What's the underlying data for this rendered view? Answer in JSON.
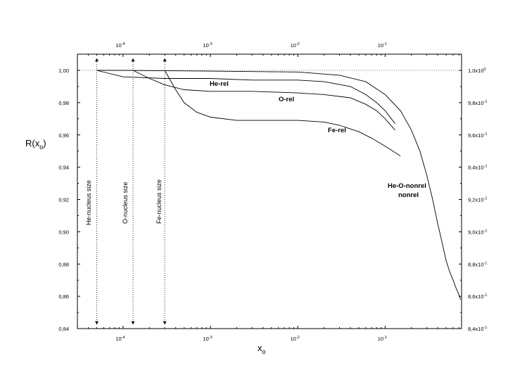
{
  "chart_data": {
    "type": "line",
    "ylabel": "R(x",
    "ylabel_sub": "o",
    "ylabel_close": ")",
    "xlabel": "x",
    "xlabel_sub": "o",
    "x_scale": "log",
    "xlim": [
      3e-05,
      0.75
    ],
    "ylim": [
      0.84,
      1.005
    ],
    "y_ticks": [
      0.84,
      0.86,
      0.88,
      0.9,
      0.92,
      0.94,
      0.96,
      0.98,
      1.0
    ],
    "y_tick_labels": [
      "0,84",
      "0,86",
      "0,88",
      "0,90",
      "0,92",
      "0,94",
      "0,96",
      "0,98",
      "1,00"
    ],
    "y_right_tick_labels": [
      {
        "base": "8,4x10",
        "exp": "-1"
      },
      {
        "base": "8,6x10",
        "exp": "-1"
      },
      {
        "base": "8,8x10",
        "exp": "-1"
      },
      {
        "base": "9,0x10",
        "exp": "-1"
      },
      {
        "base": "9,2x10",
        "exp": "-1"
      },
      {
        "base": "9,4x10",
        "exp": "-1"
      },
      {
        "base": "9,6x10",
        "exp": "-1"
      },
      {
        "base": "9,8x10",
        "exp": "-1"
      },
      {
        "base": "1,0x10",
        "exp": "0"
      }
    ],
    "x_ticks": [
      0.0001,
      0.001,
      0.01,
      0.1
    ],
    "x_tick_labels": [
      {
        "base": "10",
        "exp": "-4"
      },
      {
        "base": "10",
        "exp": "-3"
      },
      {
        "base": "10",
        "exp": "-2"
      },
      {
        "base": "10",
        "exp": "-1"
      }
    ],
    "reference_line_y": 1.0,
    "series": [
      {
        "name": "He-O-nonrel\nnonrel",
        "x": [
          5e-05,
          0.0001,
          0.001,
          0.01,
          0.03,
          0.06,
          0.1,
          0.15,
          0.2,
          0.25,
          0.3,
          0.35,
          0.4,
          0.45,
          0.5,
          0.55,
          0.6,
          0.65,
          0.7,
          0.73
        ],
        "y": [
          1.0,
          1.0,
          0.9995,
          0.999,
          0.997,
          0.993,
          0.985,
          0.975,
          0.963,
          0.95,
          0.935,
          0.92,
          0.905,
          0.893,
          0.882,
          0.875,
          0.87,
          0.865,
          0.861,
          0.858
        ]
      },
      {
        "name": "He-rel",
        "x": [
          5e-05,
          0.0001,
          0.0003,
          0.001,
          0.003,
          0.01,
          0.02,
          0.04,
          0.06,
          0.08,
          0.1,
          0.13
        ],
        "y": [
          1.0,
          0.996,
          0.995,
          0.995,
          0.994,
          0.994,
          0.993,
          0.99,
          0.985,
          0.98,
          0.975,
          0.967
        ]
      },
      {
        "name": "O-rel",
        "x": [
          0.00013,
          0.0002,
          0.0003,
          0.0005,
          0.001,
          0.003,
          0.01,
          0.02,
          0.04,
          0.06,
          0.08,
          0.1,
          0.13
        ],
        "y": [
          1.0,
          0.995,
          0.991,
          0.988,
          0.987,
          0.987,
          0.986,
          0.985,
          0.983,
          0.979,
          0.975,
          0.97,
          0.963
        ]
      },
      {
        "name": "Fe-rel",
        "x": [
          0.0003,
          0.0004,
          0.0005,
          0.0007,
          0.001,
          0.002,
          0.005,
          0.01,
          0.02,
          0.03,
          0.05,
          0.07,
          0.1,
          0.15
        ],
        "y": [
          1.0,
          0.988,
          0.98,
          0.974,
          0.971,
          0.969,
          0.969,
          0.969,
          0.968,
          0.966,
          0.962,
          0.958,
          0.953,
          0.947
        ]
      }
    ],
    "curve_label_texts": [
      "He-rel",
      "O-rel",
      "Fe-rel",
      "He-O-nonrel",
      "nonrel"
    ],
    "nucleus_markers": [
      {
        "name": "He-nucleus size",
        "x": 5e-05
      },
      {
        "name": "O-nucleus size",
        "x": 0.00013
      },
      {
        "name": "Fe-nucleus size",
        "x": 0.0003
      }
    ]
  }
}
